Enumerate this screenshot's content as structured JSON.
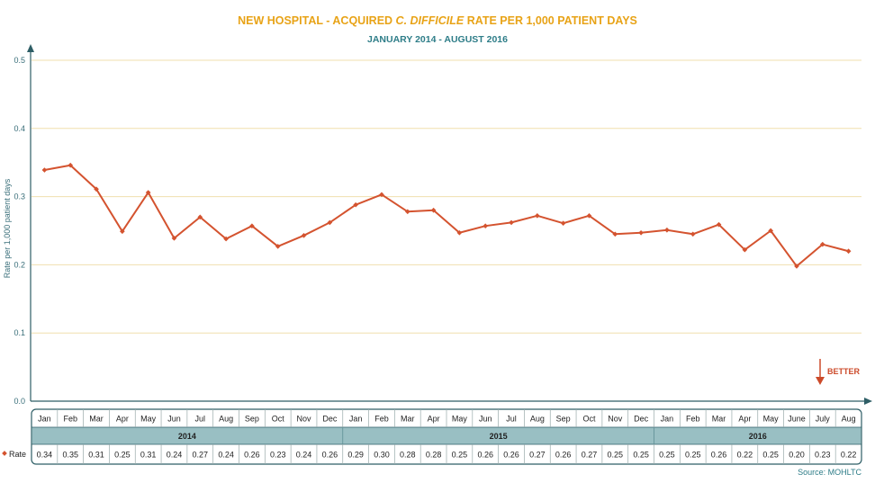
{
  "chart_data": {
    "type": "line",
    "title_parts": [
      "NEW HOSPITAL - ACQUIRED ",
      "C. DIFFICILE",
      " RATE PER 1,000 PATIENT DAYS"
    ],
    "subtitle": "JANUARY 2014 - AUGUST 2016",
    "ylabel": "Rate per 1,000 patient days",
    "ylim": [
      0,
      0.5
    ],
    "yticks": [
      "0.0",
      "0.1",
      "0.2",
      "0.3",
      "0.4",
      "0.5"
    ],
    "grid": true,
    "categories": [
      "Jan",
      "Feb",
      "Mar",
      "Apr",
      "May",
      "Jun",
      "Jul",
      "Aug",
      "Sep",
      "Oct",
      "Nov",
      "Dec",
      "Jan",
      "Feb",
      "Mar",
      "Apr",
      "May",
      "Jun",
      "Jul",
      "Aug",
      "Sep",
      "Oct",
      "Nov",
      "Dec",
      "Jan",
      "Feb",
      "Mar",
      "Apr",
      "May",
      "June",
      "July",
      "Aug"
    ],
    "years": [
      {
        "label": "2014",
        "count": 12
      },
      {
        "label": "2015",
        "count": 12
      },
      {
        "label": "2016",
        "count": 8
      }
    ],
    "series": [
      {
        "name": "Rate",
        "color": "#d4532f",
        "values": [
          0.339,
          0.346,
          0.311,
          0.249,
          0.306,
          0.239,
          0.27,
          0.238,
          0.257,
          0.227,
          0.243,
          0.262,
          0.288,
          0.303,
          0.278,
          0.28,
          0.247,
          0.257,
          0.262,
          0.272,
          0.261,
          0.272,
          0.245,
          0.247,
          0.251,
          0.245,
          0.259,
          0.222,
          0.25,
          0.198,
          0.23,
          0.22
        ],
        "labels": [
          "0.34",
          "0.35",
          "0.31",
          "0.25",
          "0.31",
          "0.24",
          "0.27",
          "0.24",
          "0.26",
          "0.23",
          "0.24",
          "0.26",
          "0.29",
          "0.30",
          "0.28",
          "0.28",
          "0.25",
          "0.26",
          "0.26",
          "0.27",
          "0.26",
          "0.27",
          "0.25",
          "0.25",
          "0.25",
          "0.25",
          "0.26",
          "0.22",
          "0.25",
          "0.20",
          "0.23",
          "0.22"
        ]
      }
    ],
    "annotation": "BETTER",
    "source": "Source: MOHLTC"
  }
}
